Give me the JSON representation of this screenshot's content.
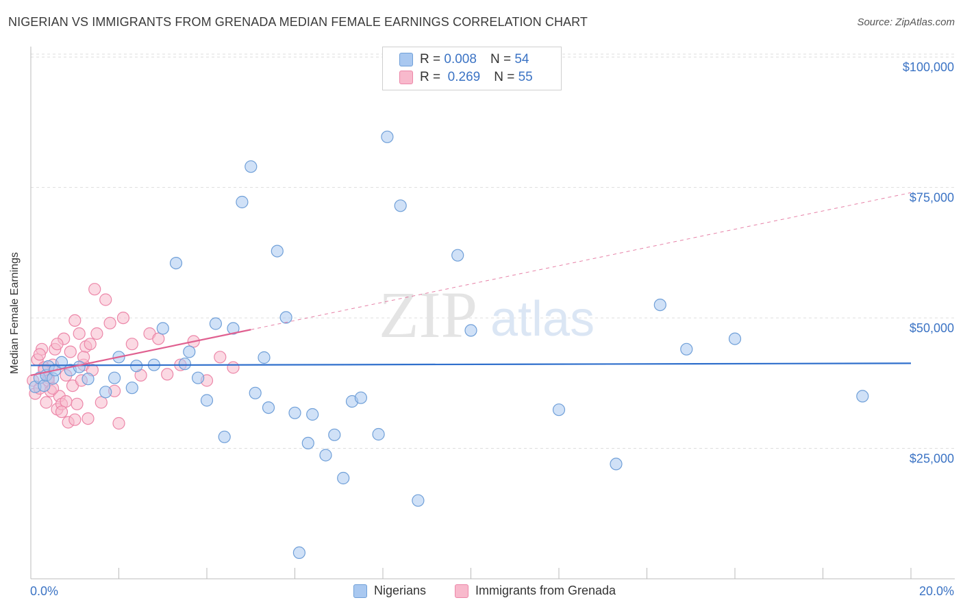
{
  "title": "NIGERIAN VS IMMIGRANTS FROM GRENADA MEDIAN FEMALE EARNINGS CORRELATION CHART",
  "source": "Source: ZipAtlas.com",
  "watermark": {
    "zip": "ZIP",
    "atlas": "atlas"
  },
  "legend": {
    "r_label": "R =",
    "n_label": "N =",
    "series": [
      {
        "r": "0.008",
        "n": "54"
      },
      {
        "r": "0.269",
        "n": "55"
      }
    ]
  },
  "bottom_legend": [
    "Nigerians",
    "Immigrants from Grenada"
  ],
  "colors": {
    "blue_fill": "#a9c8f0",
    "blue_stroke": "#6f9fd8",
    "blue_line": "#2f6fcc",
    "pink_fill": "#f8b9cc",
    "pink_stroke": "#ec86a8",
    "pink_line": "#e06090",
    "axis_text": "#3b73c4",
    "grid": "#dddddd"
  },
  "chart_data": {
    "type": "scatter",
    "title": "NIGERIAN VS IMMIGRANTS FROM GRENADA MEDIAN FEMALE EARNINGS CORRELATION CHART",
    "xlabel": "",
    "ylabel": "Median Female Earnings",
    "xlim": [
      0,
      20
    ],
    "ylim": [
      0,
      102000
    ],
    "x_tick_labels": [
      "0.0%",
      "20.0%"
    ],
    "y_ticks": [
      {
        "value": 25000,
        "label": "$25,000"
      },
      {
        "value": 50000,
        "label": "$50,000"
      },
      {
        "value": 75000,
        "label": "$75,000"
      },
      {
        "value": 100000,
        "label": "$100,000"
      }
    ],
    "series": [
      {
        "name": "Nigerians",
        "r": 0.008,
        "n": 54,
        "trend": {
          "x0": 0,
          "y0": 40900,
          "x1": 20,
          "y1": 41300,
          "x_end_solid": 20
        },
        "x": [
          0.1,
          0.2,
          0.3,
          0.35,
          0.4,
          0.5,
          0.55,
          0.7,
          0.9,
          1.1,
          1.3,
          1.7,
          1.9,
          2.0,
          2.3,
          2.4,
          2.8,
          3.0,
          3.3,
          3.5,
          3.6,
          3.8,
          4.0,
          4.2,
          4.4,
          4.6,
          4.8,
          5.0,
          5.1,
          5.3,
          5.4,
          5.6,
          5.8,
          6.0,
          6.1,
          6.3,
          6.4,
          6.7,
          6.9,
          7.1,
          7.3,
          7.5,
          7.9,
          8.1,
          8.4,
          8.8,
          9.7,
          10.0,
          12.0,
          13.3,
          14.3,
          14.9,
          16.0,
          18.9
        ],
        "y": [
          36800,
          38500,
          37000,
          39000,
          40700,
          38400,
          40000,
          41500,
          40000,
          40600,
          38300,
          35800,
          38500,
          42500,
          36600,
          40800,
          41000,
          48000,
          60500,
          41200,
          43500,
          38500,
          34200,
          48900,
          27200,
          48000,
          72200,
          79000,
          35600,
          42400,
          32800,
          62800,
          50100,
          31800,
          5000,
          26000,
          31500,
          23700,
          27600,
          19300,
          34000,
          34700,
          27700,
          84700,
          71500,
          15000,
          62000,
          47600,
          32400,
          22000,
          52500,
          44000,
          46000,
          35000
        ]
      },
      {
        "name": "Immigrants from Grenada",
        "r": 0.269,
        "n": 55,
        "trend": {
          "x0": 0,
          "y0": 39000,
          "x1": 20,
          "y1": 74000,
          "x_end_solid": 5.0
        },
        "x": [
          0.05,
          0.1,
          0.15,
          0.2,
          0.25,
          0.3,
          0.35,
          0.4,
          0.45,
          0.5,
          0.55,
          0.6,
          0.65,
          0.7,
          0.75,
          0.8,
          0.85,
          0.9,
          0.95,
          1.0,
          1.05,
          1.1,
          1.15,
          1.2,
          1.25,
          1.3,
          1.35,
          1.4,
          1.45,
          1.5,
          1.6,
          1.7,
          1.8,
          1.9,
          2.0,
          2.1,
          2.3,
          2.5,
          2.7,
          2.9,
          3.1,
          3.4,
          3.7,
          4.0,
          4.3,
          4.6,
          0.2,
          0.4,
          0.6,
          0.8,
          1.0,
          1.2,
          0.3,
          0.5,
          0.7
        ],
        "y": [
          38000,
          35500,
          42000,
          36500,
          44000,
          40500,
          33800,
          38500,
          36000,
          41000,
          44000,
          32500,
          35000,
          33500,
          46000,
          39000,
          30000,
          43500,
          37000,
          49500,
          33500,
          47000,
          38000,
          41000,
          44500,
          30700,
          45000,
          40000,
          55500,
          47000,
          33800,
          53500,
          49000,
          36000,
          29800,
          50000,
          45000,
          39000,
          47000,
          46000,
          39200,
          41000,
          45500,
          38000,
          42500,
          40500,
          43000,
          38000,
          45000,
          34000,
          30500,
          42500,
          40000,
          36500,
          32000
        ]
      }
    ]
  }
}
